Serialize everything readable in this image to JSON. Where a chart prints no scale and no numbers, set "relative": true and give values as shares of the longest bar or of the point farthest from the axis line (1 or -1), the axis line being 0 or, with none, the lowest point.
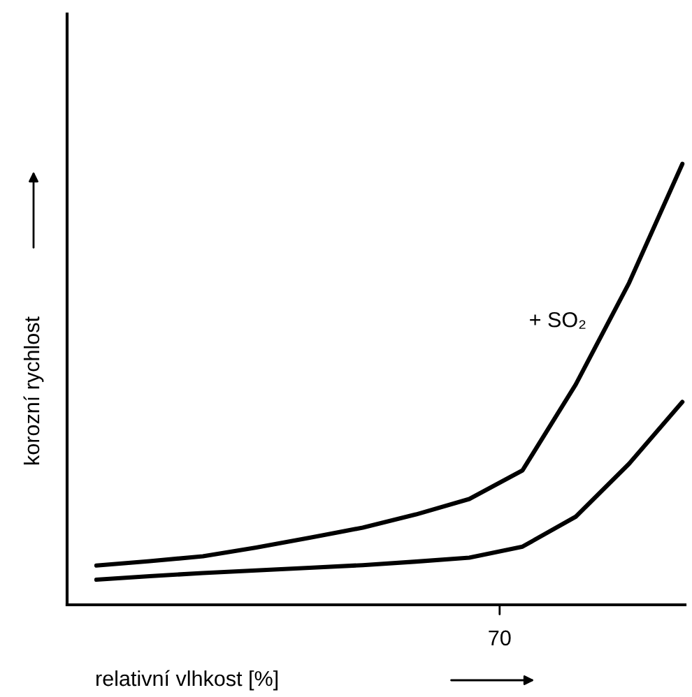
{
  "chart_data": {
    "type": "line",
    "relative": true,
    "xlabel": "relativní vlhkost [%]",
    "ylabel": "korozní rychlost",
    "legend": false,
    "marker": "none",
    "line_style": "solid",
    "annotations": [
      "70"
    ],
    "categories": [
      null,
      null,
      null,
      null,
      null,
      null,
      null,
      null,
      null,
      null,
      null,
      null
    ],
    "series": [
      {
        "name": "+ SO₂",
        "color": "#000000",
        "values": [
          0.089,
          0.099,
          0.11,
          0.13,
          0.152,
          0.175,
          0.205,
          0.24,
          0.305,
          0.5,
          0.73,
          1.0
        ]
      },
      {
        "color": "#000000",
        "values": [
          0.057,
          0.065,
          0.072,
          0.078,
          0.084,
          0.09,
          0.098,
          0.107,
          0.132,
          0.2,
          0.32,
          0.46
        ]
      }
    ]
  }
}
